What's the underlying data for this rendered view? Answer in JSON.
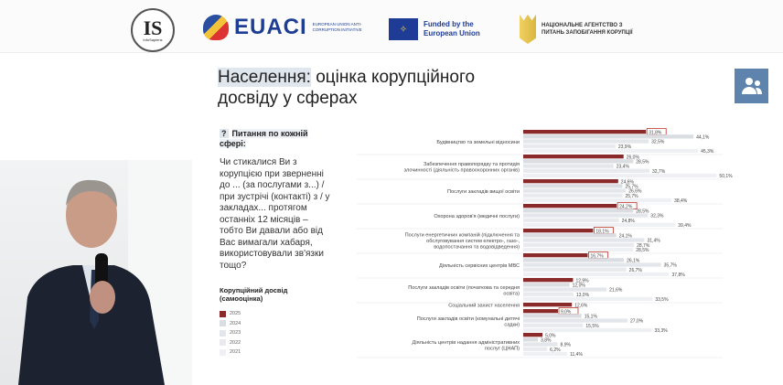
{
  "header": {
    "logos": {
      "infosapiens": "IS",
      "infosapiens_sub": "InfoSapiens",
      "euaci": "EUACI",
      "euaci_sub": "EUROPEAN UNION ANTI-CORRUPTION INITIATIVE",
      "eu": "Funded by the European Union",
      "nazk": "НАЦІОНАЛЬНЕ АГЕНТСТВО З ПИТАНЬ ЗАПОБІГАННЯ КОРУПЦІЇ"
    }
  },
  "slide": {
    "title_highlight": "Населення:",
    "title_rest": " оцінка корупційного досвіду у сферах",
    "question_mark": "?",
    "question_head": "Питання по кожній сфері:",
    "question": "Чи стикалися Ви з корупцією при зверненні до ... (за послугами з...) / при зустрічі (контакті) з / у закладах... протягом останніх 12 місяців – тобто Ви давали або від Вас вимагали хабаря, використовували зв'язки тощо?",
    "legend_title": "Корупційний досвід (самооцінка)",
    "people_icon": "people-icon"
  },
  "chart_data": {
    "type": "bar",
    "orientation": "horizontal",
    "unit": "%",
    "series_names": [
      "2025",
      "2024",
      "2023",
      "2022",
      "2021"
    ],
    "colors": {
      "2025": "#8b2a2a",
      "2024": "#dadde2",
      "2023": "#e3e6ea",
      "2022": "#e8eaee",
      "2021": "#eef0f3",
      "highlight_box": "#c0392b"
    },
    "categories": [
      {
        "label": "Будівництво та земельні відносини",
        "values": [
          31.8,
          44.1,
          32.5,
          23.9,
          45.3
        ],
        "boxed": true
      },
      {
        "label": "Забезпечення правопорядку та протидія злочинності (діяльність правоохоронних органів)",
        "values": [
          26.0,
          28.5,
          23.4,
          32.7,
          50.1
        ],
        "boxed": false
      },
      {
        "label": "Послуги закладів вищої освіти",
        "values": [
          24.6,
          25.7,
          26.6,
          25.7,
          38.4
        ],
        "boxed": false
      },
      {
        "label": "Охорона здоров'я (медичні послуги)",
        "values": [
          24.2,
          28.5,
          32.3,
          24.8,
          39.4
        ],
        "boxed": true
      },
      {
        "label": "Послуги енергетичних компаній (підключення та обслуговування систем електро-, газо-, водопостачання та водовідведення)",
        "values": [
          18.1,
          24.1,
          31.4,
          28.7,
          28.5
        ],
        "boxed": true
      },
      {
        "label": "Діяльність сервісних центрів МВС",
        "values": [
          16.7,
          26.1,
          35.7,
          26.7,
          37.8
        ],
        "boxed": true
      },
      {
        "label": "Послуги закладів освіти (початкова та середня освіта)",
        "values": [
          12.9,
          12.0,
          21.6,
          13.0,
          33.5
        ],
        "boxed": false
      },
      {
        "label": "Соціальний захист населення",
        "values": [
          12.6
        ],
        "boxed": false
      },
      {
        "label": "Послуги закладів освіти (комунальні дитячі садки)",
        "values": [
          9.0,
          15.1,
          27.0,
          15.5,
          33.3
        ],
        "boxed": true
      },
      {
        "label": "Діяльність центрів надання адміністративних послуг (ЦНАП)",
        "values": [
          5.0,
          3.8,
          8.9,
          6.2,
          11.4
        ],
        "boxed": false
      }
    ],
    "xlim": [
      0,
      55
    ],
    "grid": false,
    "legend_placement": "left"
  }
}
